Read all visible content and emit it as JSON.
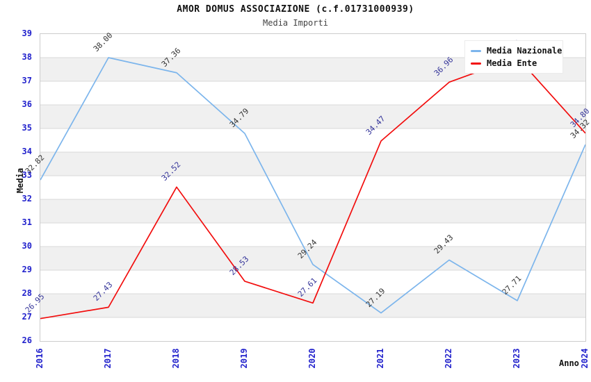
{
  "title": "AMOR DOMUS ASSOCIAZIONE (c.f.01731000939)",
  "subtitle": "Media Importi",
  "axes": {
    "y_title": "Media",
    "x_title": "Anno",
    "y_ticks": [
      26,
      27,
      28,
      29,
      30,
      31,
      32,
      33,
      34,
      35,
      36,
      37,
      38,
      39
    ],
    "tick_label_color": "#2222cc"
  },
  "colors": {
    "background": "#ffffff",
    "band_gray": "#f0f0f0",
    "gridline": "#d9d9d9",
    "plot_border": "#cccccc",
    "blue_series": "#7cb5ec",
    "red_series": "#f20d0d",
    "blue_series_label_text": "#333333",
    "red_series_label_text": "#333399"
  },
  "legend": {
    "position": "top-right",
    "items": [
      {
        "label": "Media Nazionale",
        "color": "#7cb5ec"
      },
      {
        "label": "Media Ente",
        "color": "#f20d0d"
      }
    ]
  },
  "chart_data": {
    "type": "line",
    "title": "AMOR DOMUS ASSOCIAZIONE (c.f.01731000939)",
    "subtitle": "Media Importi",
    "xlabel": "Anno",
    "ylabel": "Media",
    "x": [
      "2016",
      "2017",
      "2018",
      "2019",
      "2020",
      "2021",
      "2022",
      "2023",
      "2024"
    ],
    "ylim": [
      26,
      39
    ],
    "grid": "horizontal gridlines with alternating white/gray unit bands",
    "legend_position": "top-right",
    "series": [
      {
        "name": "Media Nazionale",
        "color": "#7cb5ec",
        "label_color": "#333333",
        "values": [
          32.82,
          38.0,
          37.36,
          34.79,
          29.24,
          27.19,
          29.43,
          27.71,
          34.32
        ],
        "labels": [
          "32.82",
          "38.00",
          "37.36",
          "34.79",
          "29.24",
          "27.19",
          "29.43",
          "27.71",
          "34.32"
        ]
      },
      {
        "name": "Media Ente",
        "color": "#f20d0d",
        "label_color": "#333399",
        "values": [
          26.95,
          27.43,
          32.52,
          28.53,
          27.61,
          34.47,
          36.96,
          38.01,
          34.8
        ],
        "labels": [
          "26.95",
          "27.43",
          "32.52",
          "28.53",
          "27.61",
          "34.47",
          "36.96",
          "38.01",
          "34.80"
        ],
        "note_2023": "label mostly hidden behind legend box"
      }
    ]
  }
}
